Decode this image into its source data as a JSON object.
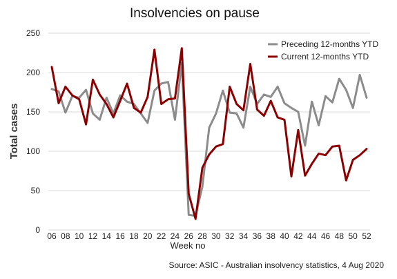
{
  "chart_data": {
    "type": "line",
    "title": "Insolvencies on pause",
    "xlabel": "Week no",
    "ylabel": "Total cases",
    "source": "Source: ASIC - Australian insolvency statistics, 4 Aug 2020",
    "x": [
      6,
      7,
      8,
      9,
      10,
      11,
      12,
      13,
      14,
      15,
      16,
      17,
      18,
      19,
      20,
      21,
      22,
      23,
      24,
      25,
      26,
      27,
      28,
      29,
      30,
      31,
      32,
      33,
      34,
      35,
      36,
      37,
      38,
      39,
      40,
      41,
      42,
      43,
      44,
      45,
      46,
      47,
      48,
      49,
      50,
      51,
      52
    ],
    "x_tick_labels": [
      "06",
      "08",
      "10",
      "12",
      "14",
      "16",
      "18",
      "20",
      "22",
      "24",
      "26",
      "28",
      "30",
      "32",
      "34",
      "36",
      "38",
      "40",
      "42",
      "44",
      "46",
      "48",
      "50",
      "52"
    ],
    "ylim": [
      0,
      250
    ],
    "y_ticks": [
      0,
      50,
      100,
      150,
      200,
      250
    ],
    "grid": "horizontal",
    "legend_position": "top-right",
    "series": [
      {
        "name": "Preceding 12-months YTD",
        "color": "#8c8c8c",
        "values": [
          179,
          176,
          149,
          170,
          168,
          178,
          148,
          140,
          168,
          148,
          171,
          163,
          160,
          148,
          136,
          177,
          186,
          188,
          140,
          212,
          19,
          18,
          55,
          130,
          148,
          177,
          149,
          148,
          130,
          182,
          160,
          172,
          169,
          182,
          161,
          155,
          150,
          107,
          163,
          133,
          170,
          162,
          192,
          178,
          155,
          197,
          168
        ]
      },
      {
        "name": "Current 12-months YTD",
        "color": "#8b0000",
        "values": [
          207,
          161,
          182,
          171,
          166,
          134,
          191,
          172,
          160,
          143,
          164,
          186,
          155,
          149,
          169,
          229,
          160,
          166,
          167,
          231,
          46,
          14,
          79,
          96,
          106,
          109,
          182,
          160,
          152,
          211,
          153,
          145,
          164,
          143,
          140,
          68,
          127,
          69,
          84,
          97,
          95,
          106,
          107,
          63,
          89,
          95,
          103
        ]
      }
    ]
  }
}
